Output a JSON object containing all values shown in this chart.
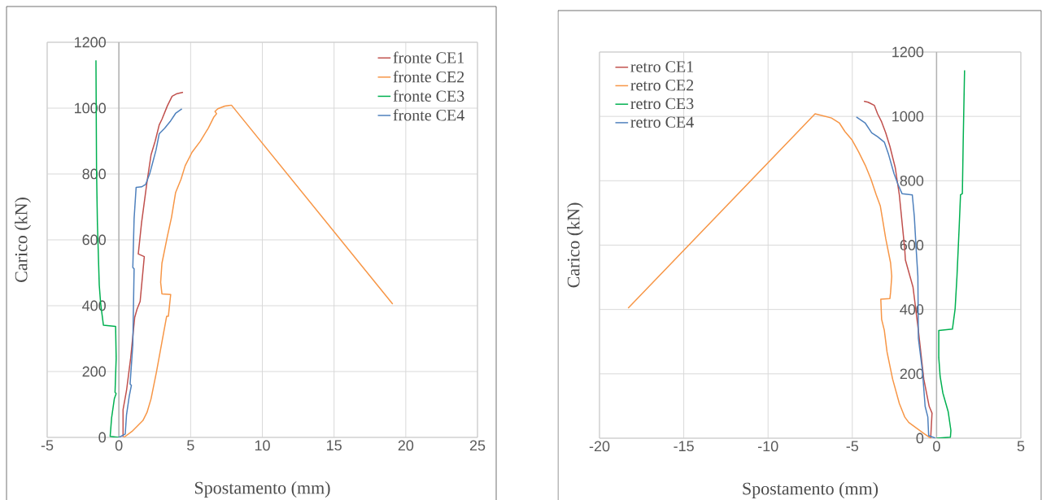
{
  "chart_data": [
    {
      "type": "line",
      "xlabel": "Spostamento (mm)",
      "ylabel": "Carico (kN)",
      "xlim": [
        -5,
        25
      ],
      "ylim": [
        0,
        1200
      ],
      "xticks": [
        -5,
        0,
        5,
        10,
        15,
        20,
        25
      ],
      "yticks": [
        0,
        200,
        400,
        600,
        800,
        1000,
        1200
      ],
      "grid": true,
      "legend": "top right",
      "series": [
        {
          "name": "fronte CE1",
          "color": "#c0504d",
          "x": [
            0.29,
            0.29,
            0.53,
            0.82,
            1.1,
            1.26,
            1.48,
            1.77,
            1.35,
            1.58,
            1.96,
            2.24,
            2.53,
            2.81,
            3.0,
            3.38,
            3.71,
            4.05,
            4.47
          ],
          "values": [
            2,
            84,
            142,
            241,
            364,
            389,
            413,
            549,
            557,
            652,
            776,
            858,
            900,
            949,
            966,
            1007,
            1036,
            1044,
            1048
          ]
        },
        {
          "name": "fronte CE2",
          "color": "#f79646",
          "x": [
            0.34,
            0.91,
            1.67,
            1.96,
            2.24,
            2.62,
            3.0,
            3.33,
            3.45,
            3.61,
            3.0,
            2.91,
            3.0,
            3.38,
            3.67,
            3.95,
            4.33,
            4.62,
            5.1,
            5.67,
            6.24,
            6.62,
            6.81,
            6.7,
            6.9,
            7.38,
            7.85,
            19.09
          ],
          "values": [
            0,
            18,
            51,
            76,
            117,
            199,
            290,
            368,
            368,
            434,
            436,
            471,
            529,
            611,
            669,
            743,
            784,
            825,
            866,
            899,
            940,
            973,
            983,
            990,
            998,
            1006,
            1009,
            405
          ]
        },
        {
          "name": "fronte CE3",
          "color": "#00b050",
          "x": [
            0,
            -0.61,
            -0.51,
            -0.32,
            -0.19,
            -0.27,
            -0.19,
            -0.23,
            -1.08,
            -1.27,
            -1.37,
            -1.5,
            -1.56,
            -1.6
          ],
          "values": [
            0,
            3,
            59,
            117,
            133,
            137,
            241,
            337,
            341,
            405,
            463,
            652,
            817,
            1145
          ]
        },
        {
          "name": "fronte CE4",
          "color": "#4f81bd",
          "x": [
            0,
            0.44,
            0.53,
            0.72,
            0.87,
            0.78,
            0.97,
            1.06,
            0.97,
            1.06,
            1.2,
            1.58,
            1.86,
            2.15,
            2.34,
            2.59,
            2.81,
            3.19,
            3.57,
            3.95,
            4.39
          ],
          "values": [
            0,
            10,
            68,
            125,
            158,
            162,
            282,
            512,
            516,
            665,
            759,
            761,
            768,
            801,
            832,
            873,
            922,
            939,
            959,
            984,
            998
          ]
        }
      ]
    },
    {
      "type": "line",
      "xlabel": "Spostamento (mm)",
      "ylabel": "Carico (kN)",
      "xlim": [
        -20,
        5
      ],
      "ylim": [
        0,
        1200
      ],
      "xticks": [
        -20,
        -15,
        -10,
        -5,
        0,
        5
      ],
      "yticks": [
        0,
        200,
        400,
        600,
        800,
        1000,
        1200
      ],
      "grid": true,
      "legend": "top left",
      "series": [
        {
          "name": "retro CE1",
          "color": "#c0504d",
          "x": [
            -0.35,
            -0.27,
            -0.44,
            -0.76,
            -1.08,
            -1.4,
            -1.85,
            -1.89,
            -2.21,
            -2.45,
            -2.77,
            -3.02,
            -3.26,
            -3.5,
            -3.69,
            -4.06,
            -4.31
          ],
          "values": [
            0,
            78,
            99,
            184,
            335,
            470,
            554,
            587,
            756,
            840,
            907,
            949,
            983,
            1008,
            1034,
            1044,
            1047
          ]
        },
        {
          "name": "retro CE2",
          "color": "#f79646",
          "x": [
            -0.35,
            -0.76,
            -1.65,
            -1.89,
            -2.21,
            -2.61,
            -2.94,
            -3.1,
            -3.26,
            -3.31,
            -2.77,
            -2.73,
            -2.66,
            -2.73,
            -3.02,
            -3.18,
            -3.34,
            -3.58,
            -3.9,
            -4.23,
            -4.63,
            -5.03,
            -5.44,
            -5.76,
            -6.24,
            -7.21,
            -18.3
          ],
          "values": [
            0,
            15,
            49,
            66,
            108,
            184,
            268,
            335,
            369,
            432,
            434,
            453,
            503,
            545,
            621,
            672,
            722,
            756,
            806,
            848,
            890,
            928,
            953,
            979,
            995,
            1008,
            404
          ]
        },
        {
          "name": "retro CE3",
          "color": "#00b050",
          "x": [
            0,
            0.82,
            0.85,
            0.69,
            0.37,
            0.21,
            0.13,
            0.13,
            0.94,
            1.1,
            1.21,
            1.34,
            1.42,
            1.53,
            1.58,
            1.66
          ],
          "values": [
            0,
            3,
            24,
            82,
            141,
            192,
            251,
            335,
            339,
            402,
            503,
            655,
            756,
            760,
            924,
            1143
          ]
        },
        {
          "name": "retro CE4",
          "color": "#4f81bd",
          "x": [
            -0.06,
            -0.47,
            -0.52,
            -0.68,
            -0.84,
            -1.08,
            -1.11,
            -1.21,
            -1.32,
            -1.44,
            -2.05,
            -2.29,
            -2.53,
            -2.85,
            -3.1,
            -3.5,
            -3.85,
            -4.23,
            -4.76
          ],
          "values": [
            0,
            8,
            66,
            99,
            209,
            310,
            503,
            587,
            688,
            756,
            760,
            789,
            823,
            882,
            920,
            937,
            949,
            979,
            998
          ]
        }
      ]
    }
  ]
}
